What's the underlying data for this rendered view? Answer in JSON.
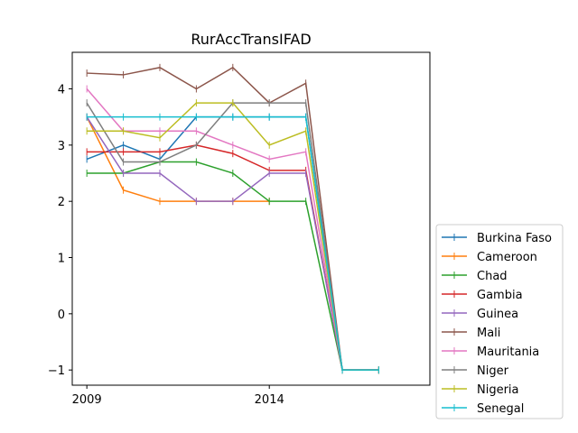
{
  "chart_data": {
    "type": "line",
    "title": "RurAccTransIFAD",
    "xlabel": "",
    "ylabel": "",
    "x": [
      2009,
      2010,
      2011,
      2012,
      2013,
      2014,
      2015,
      2016,
      2017
    ],
    "xticks": [
      2009,
      2014
    ],
    "xtick_labels": [
      "2009",
      "2014"
    ],
    "yticks": [
      -1,
      0,
      1,
      2,
      3,
      4
    ],
    "ytick_labels": [
      "−1",
      "0",
      "1",
      "2",
      "3",
      "4"
    ],
    "xlim": [
      2008.6,
      2018.4
    ],
    "ylim": [
      -1.27,
      4.65
    ],
    "grid": false,
    "legend_position": "outside-lower-right",
    "series": [
      {
        "name": "Burkina Faso",
        "color": "#1f77b4",
        "values": [
          2.75,
          3.0,
          2.75,
          3.5,
          3.5,
          3.5,
          3.5,
          -1,
          -1
        ]
      },
      {
        "name": "Cameroon",
        "color": "#ff7f0e",
        "values": [
          3.5,
          2.2,
          2.0,
          2.0,
          2.0,
          2.0,
          null,
          null,
          null
        ]
      },
      {
        "name": "Chad",
        "color": "#2ca02c",
        "values": [
          2.5,
          2.5,
          2.7,
          2.7,
          2.5,
          2.0,
          2.0,
          -1,
          -1
        ]
      },
      {
        "name": "Gambia",
        "color": "#d62728",
        "values": [
          2.88,
          2.88,
          2.88,
          3.0,
          2.85,
          2.55,
          2.55,
          -1,
          -1
        ]
      },
      {
        "name": "Guinea",
        "color": "#9467bd",
        "values": [
          3.5,
          2.5,
          2.5,
          2.0,
          2.0,
          2.5,
          2.5,
          -1,
          -1
        ]
      },
      {
        "name": "Mali",
        "color": "#8c564b",
        "values": [
          4.28,
          4.25,
          4.38,
          4.0,
          4.38,
          3.75,
          4.1,
          -1,
          -1
        ]
      },
      {
        "name": "Mauritania",
        "color": "#e377c2",
        "values": [
          4.0,
          3.25,
          3.25,
          3.25,
          3.0,
          2.75,
          2.88,
          -1,
          -1
        ]
      },
      {
        "name": "Niger",
        "color": "#7f7f7f",
        "values": [
          3.75,
          2.7,
          2.7,
          3.0,
          3.75,
          3.75,
          3.75,
          -1,
          -1
        ]
      },
      {
        "name": "Nigeria",
        "color": "#bcbd22",
        "values": [
          3.25,
          3.25,
          3.13,
          3.75,
          3.75,
          3.0,
          3.25,
          -1,
          -1
        ]
      },
      {
        "name": "Senegal",
        "color": "#17becf",
        "values": [
          3.5,
          3.5,
          3.5,
          3.5,
          3.5,
          3.5,
          3.5,
          -1,
          -1
        ]
      }
    ]
  }
}
